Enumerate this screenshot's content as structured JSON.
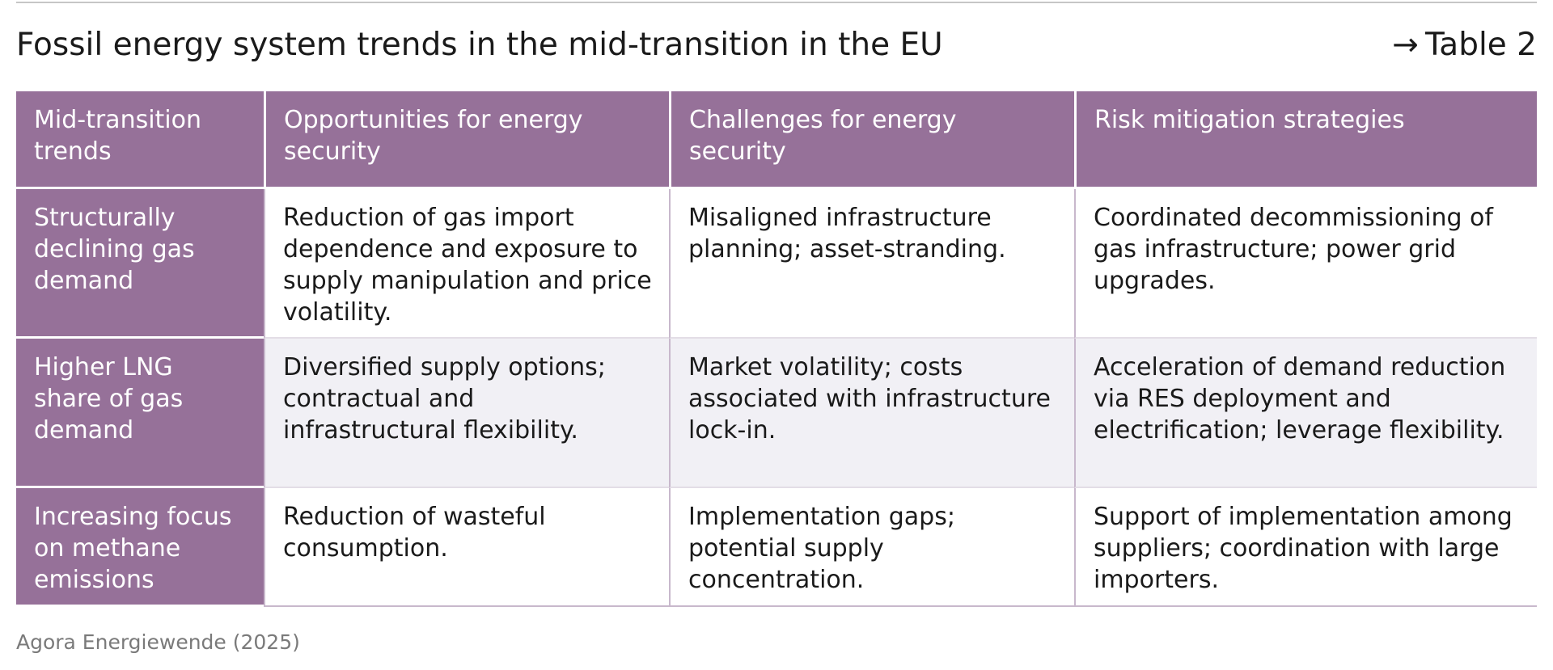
{
  "title": "Fossil energy system trends in the mid-transition in the EU",
  "table_ref": {
    "arrow": "→",
    "label": "Table 2"
  },
  "table": {
    "headers": [
      "Mid-transition trends",
      "Opportunities for energy security",
      "Challenges for energy security",
      "Risk mitigation strategies"
    ],
    "rows": [
      {
        "trend": "Structurally declining gas demand",
        "opportunities": "Reduction of gas import dependence and exposure to supply manipulation and price volatility.",
        "challenges": "Misaligned infrastructure planning; asset-stranding.",
        "strategies": "Coordinated decommissioning of gas infrastructure; power grid upgrades."
      },
      {
        "trend": "Higher LNG share of gas demand",
        "opportunities": "Diversified supply options; contractual and infrastructural flexibility.",
        "challenges": "Market volatility; costs associated with infrastructure lock-in.",
        "strategies": "Acceleration of demand reduction via RES deployment and electrification; leverage flexibility."
      },
      {
        "trend": "Increasing focus on methane emissions",
        "opportunities": "Reduction of wasteful consumption.",
        "challenges": "Implementation gaps; potential supply concentration.",
        "strategies": "Support of implementation among suppliers; coordination with large importers."
      }
    ]
  },
  "source": "Agora Energiewende (2025)",
  "colors": {
    "header_purple": "#967199",
    "alt_row": "#f1f0f5"
  }
}
